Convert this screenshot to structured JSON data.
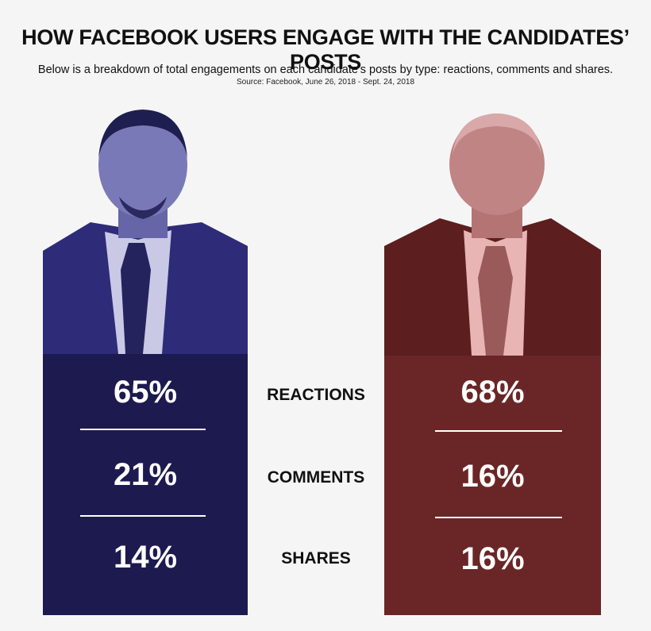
{
  "title": "HOW FACEBOOK USERS ENGAGE WITH THE CANDIDATES’ POSTS",
  "subtitle": "Below is a breakdown of total engagements on each candidate's posts by type: reactions, comments and shares.",
  "source": "Source: Facebook, June 26, 2018 - Sept. 24, 2018",
  "colors": {
    "left_panel": "#1c1a4f",
    "left_photo_tint": "#504f9c",
    "right_panel": "#6a2626",
    "right_photo_tint": "#8a4545",
    "background": "#f5f5f5"
  },
  "chart_data": {
    "type": "table",
    "categories": [
      "REACTIONS",
      "COMMENTS",
      "SHARES"
    ],
    "series": [
      {
        "values": [
          65,
          21,
          14
        ],
        "labels": [
          "65%",
          "21%",
          "14%"
        ]
      },
      {
        "values": [
          68,
          16,
          16
        ],
        "labels": [
          "68%",
          "16%",
          "16%"
        ]
      }
    ]
  }
}
